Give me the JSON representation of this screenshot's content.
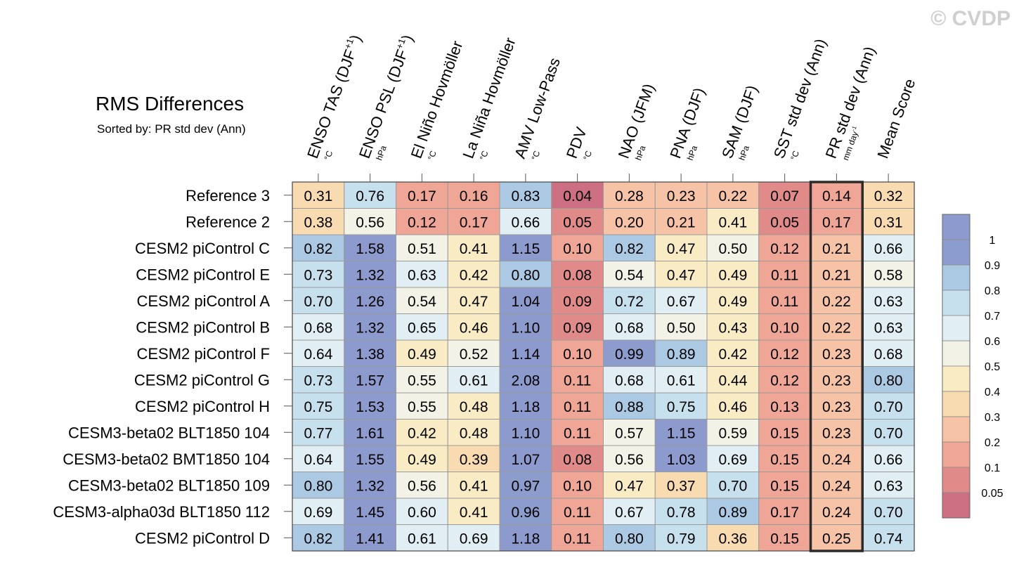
{
  "watermark": "© CVDP",
  "chart_data": {
    "type": "heatmap",
    "title": "RMS Differences",
    "subtitle": "Sorted by: PR std dev (Ann)",
    "highlight_column": "PR std dev (Ann)",
    "columns": [
      {
        "label": "ENSO TAS (DJF+1)",
        "unit": "°C"
      },
      {
        "label": "ENSO PSL (DJF+1)",
        "unit": "hPa"
      },
      {
        "label": "El Niño Hovmöller",
        "unit": "°C"
      },
      {
        "label": "La Niña Hovmöller",
        "unit": "°C"
      },
      {
        "label": "AMV Low-Pass",
        "unit": "°C"
      },
      {
        "label": "PDV",
        "unit": "°C"
      },
      {
        "label": "NAO (JFM)",
        "unit": "hPa"
      },
      {
        "label": "PNA (DJF)",
        "unit": "hPa"
      },
      {
        "label": "SAM (DJF)",
        "unit": "hPa"
      },
      {
        "label": "SST std dev (Ann)",
        "unit": "°C"
      },
      {
        "label": "PR std dev (Ann)",
        "unit": "mm day-1"
      },
      {
        "label": "Mean Score",
        "unit": ""
      }
    ],
    "rows": [
      {
        "label": "Reference 3",
        "values": [
          "0.31",
          "0.76",
          "0.17",
          "0.16",
          "0.83",
          "0.04",
          "0.28",
          "0.23",
          "0.22",
          "0.07",
          "0.14",
          "0.32"
        ]
      },
      {
        "label": "Reference 2",
        "values": [
          "0.38",
          "0.56",
          "0.12",
          "0.17",
          "0.66",
          "0.05",
          "0.20",
          "0.21",
          "0.41",
          "0.05",
          "0.17",
          "0.31"
        ]
      },
      {
        "label": "CESM2 piControl C",
        "values": [
          "0.82",
          "1.58",
          "0.51",
          "0.41",
          "1.15",
          "0.10",
          "0.82",
          "0.47",
          "0.50",
          "0.12",
          "0.21",
          "0.66"
        ]
      },
      {
        "label": "CESM2 piControl E",
        "values": [
          "0.73",
          "1.32",
          "0.63",
          "0.42",
          "0.80",
          "0.08",
          "0.54",
          "0.47",
          "0.49",
          "0.11",
          "0.21",
          "0.58"
        ]
      },
      {
        "label": "CESM2 piControl A",
        "values": [
          "0.70",
          "1.26",
          "0.54",
          "0.47",
          "1.04",
          "0.09",
          "0.72",
          "0.67",
          "0.49",
          "0.11",
          "0.22",
          "0.63"
        ]
      },
      {
        "label": "CESM2 piControl B",
        "values": [
          "0.68",
          "1.32",
          "0.65",
          "0.46",
          "1.10",
          "0.09",
          "0.68",
          "0.50",
          "0.43",
          "0.10",
          "0.22",
          "0.63"
        ]
      },
      {
        "label": "CESM2 piControl F",
        "values": [
          "0.64",
          "1.38",
          "0.49",
          "0.52",
          "1.14",
          "0.10",
          "0.99",
          "0.89",
          "0.42",
          "0.12",
          "0.23",
          "0.68"
        ]
      },
      {
        "label": "CESM2 piControl G",
        "values": [
          "0.73",
          "1.57",
          "0.55",
          "0.61",
          "2.08",
          "0.11",
          "0.68",
          "0.61",
          "0.44",
          "0.12",
          "0.23",
          "0.80"
        ]
      },
      {
        "label": "CESM2 piControl H",
        "values": [
          "0.75",
          "1.53",
          "0.55",
          "0.48",
          "1.18",
          "0.11",
          "0.88",
          "0.75",
          "0.46",
          "0.13",
          "0.23",
          "0.70"
        ]
      },
      {
        "label": "CESM3-beta02 BLT1850 104",
        "values": [
          "0.77",
          "1.61",
          "0.42",
          "0.48",
          "1.10",
          "0.11",
          "0.57",
          "1.15",
          "0.59",
          "0.15",
          "0.23",
          "0.70"
        ]
      },
      {
        "label": "CESM3-beta02 BMT1850 104",
        "values": [
          "0.64",
          "1.55",
          "0.49",
          "0.39",
          "1.07",
          "0.08",
          "0.56",
          "1.03",
          "0.69",
          "0.15",
          "0.24",
          "0.66"
        ]
      },
      {
        "label": "CESM3-beta02 BLT1850 109",
        "values": [
          "0.80",
          "1.32",
          "0.56",
          "0.41",
          "0.97",
          "0.10",
          "0.47",
          "0.37",
          "0.70",
          "0.15",
          "0.24",
          "0.63"
        ]
      },
      {
        "label": "CESM3-alpha03d BLT1850 112",
        "values": [
          "0.69",
          "1.45",
          "0.60",
          "0.41",
          "0.96",
          "0.11",
          "0.67",
          "0.78",
          "0.89",
          "0.17",
          "0.24",
          "0.70"
        ]
      },
      {
        "label": "CESM2 piControl D",
        "values": [
          "0.82",
          "1.41",
          "0.61",
          "0.69",
          "1.18",
          "0.11",
          "0.80",
          "0.79",
          "0.36",
          "0.15",
          "0.25",
          "0.74"
        ]
      }
    ],
    "colorbar": {
      "levels": [
        "0.05",
        "0.1",
        "0.2",
        "0.3",
        "0.4",
        "0.5",
        "0.6",
        "0.7",
        "0.8",
        "0.9",
        "1"
      ],
      "colors": [
        "#cc6f83",
        "#e08a8a",
        "#f0a697",
        "#f6c3a6",
        "#f9dbb2",
        "#f9ecc4",
        "#f2f2e7",
        "#e1eef3",
        "#c7e0ee",
        "#acc9e4",
        "#8c9dcd",
        "#8d9acd"
      ]
    }
  }
}
